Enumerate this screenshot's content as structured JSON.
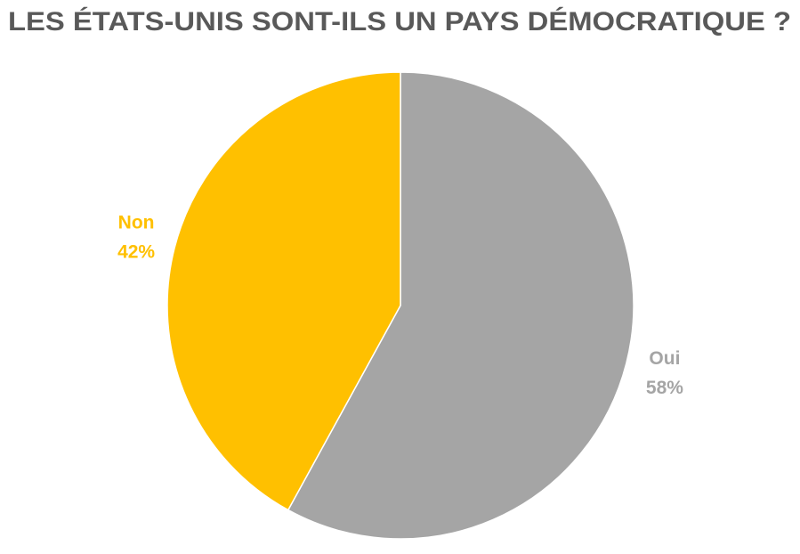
{
  "chart_data": {
    "type": "pie",
    "title": "LES ÉTATS-UNIS SONT-ILS UN PAYS DÉMOCRATIQUE ?",
    "categories": [
      "Oui",
      "Non"
    ],
    "values": [
      58,
      42
    ],
    "value_labels": [
      "58%",
      "42%"
    ],
    "colors": [
      "#a5a5a5",
      "#ffc000"
    ]
  }
}
